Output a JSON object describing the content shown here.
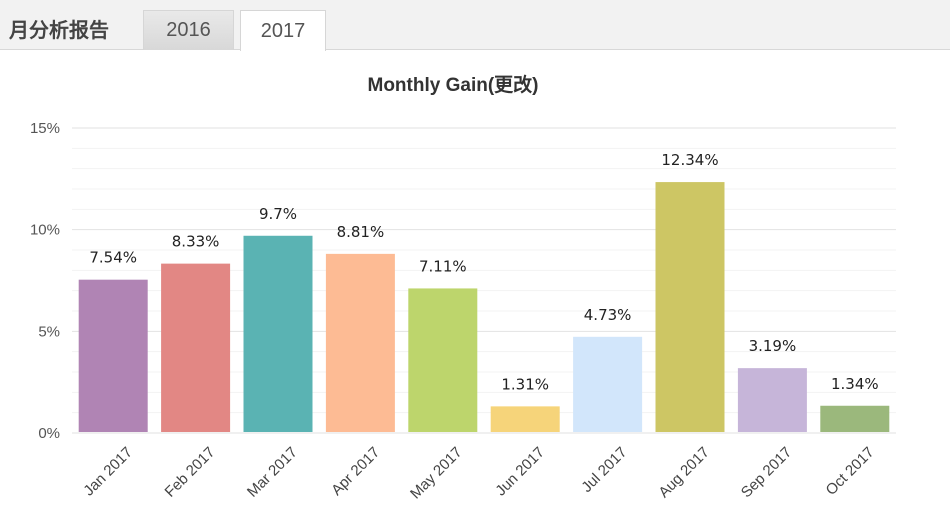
{
  "header": {
    "section_title": "月分析报告",
    "tabs": [
      {
        "label": "2016",
        "active": false
      },
      {
        "label": "2017",
        "active": true
      }
    ]
  },
  "chart_data": {
    "type": "bar",
    "title": "Monthly Gain(更改)",
    "categories": [
      "Jan 2017",
      "Feb 2017",
      "Mar 2017",
      "Apr 2017",
      "May 2017",
      "Jun 2017",
      "Jul 2017",
      "Aug 2017",
      "Sep 2017",
      "Oct 2017"
    ],
    "values": [
      7.54,
      8.33,
      9.7,
      8.81,
      7.11,
      1.31,
      4.73,
      12.34,
      3.19,
      1.34
    ],
    "data_labels": [
      "7.54%",
      "8.33%",
      "9.7%",
      "8.81%",
      "7.11%",
      "1.31%",
      "4.73%",
      "12.34%",
      "3.19%",
      "1.34%"
    ],
    "colors": [
      "#b084b4",
      "#e28784",
      "#5ab3b3",
      "#fdbb94",
      "#bdd56c",
      "#f6d47a",
      "#d2e6fb",
      "#cdc664",
      "#c6b5d9",
      "#9bb87c"
    ],
    "ylim": [
      0,
      15
    ],
    "yticks": [
      "0%",
      "5%",
      "10%",
      "15%"
    ],
    "ytick_values": [
      0,
      5,
      10,
      15
    ],
    "grid": true,
    "xlabel": "",
    "ylabel": ""
  }
}
